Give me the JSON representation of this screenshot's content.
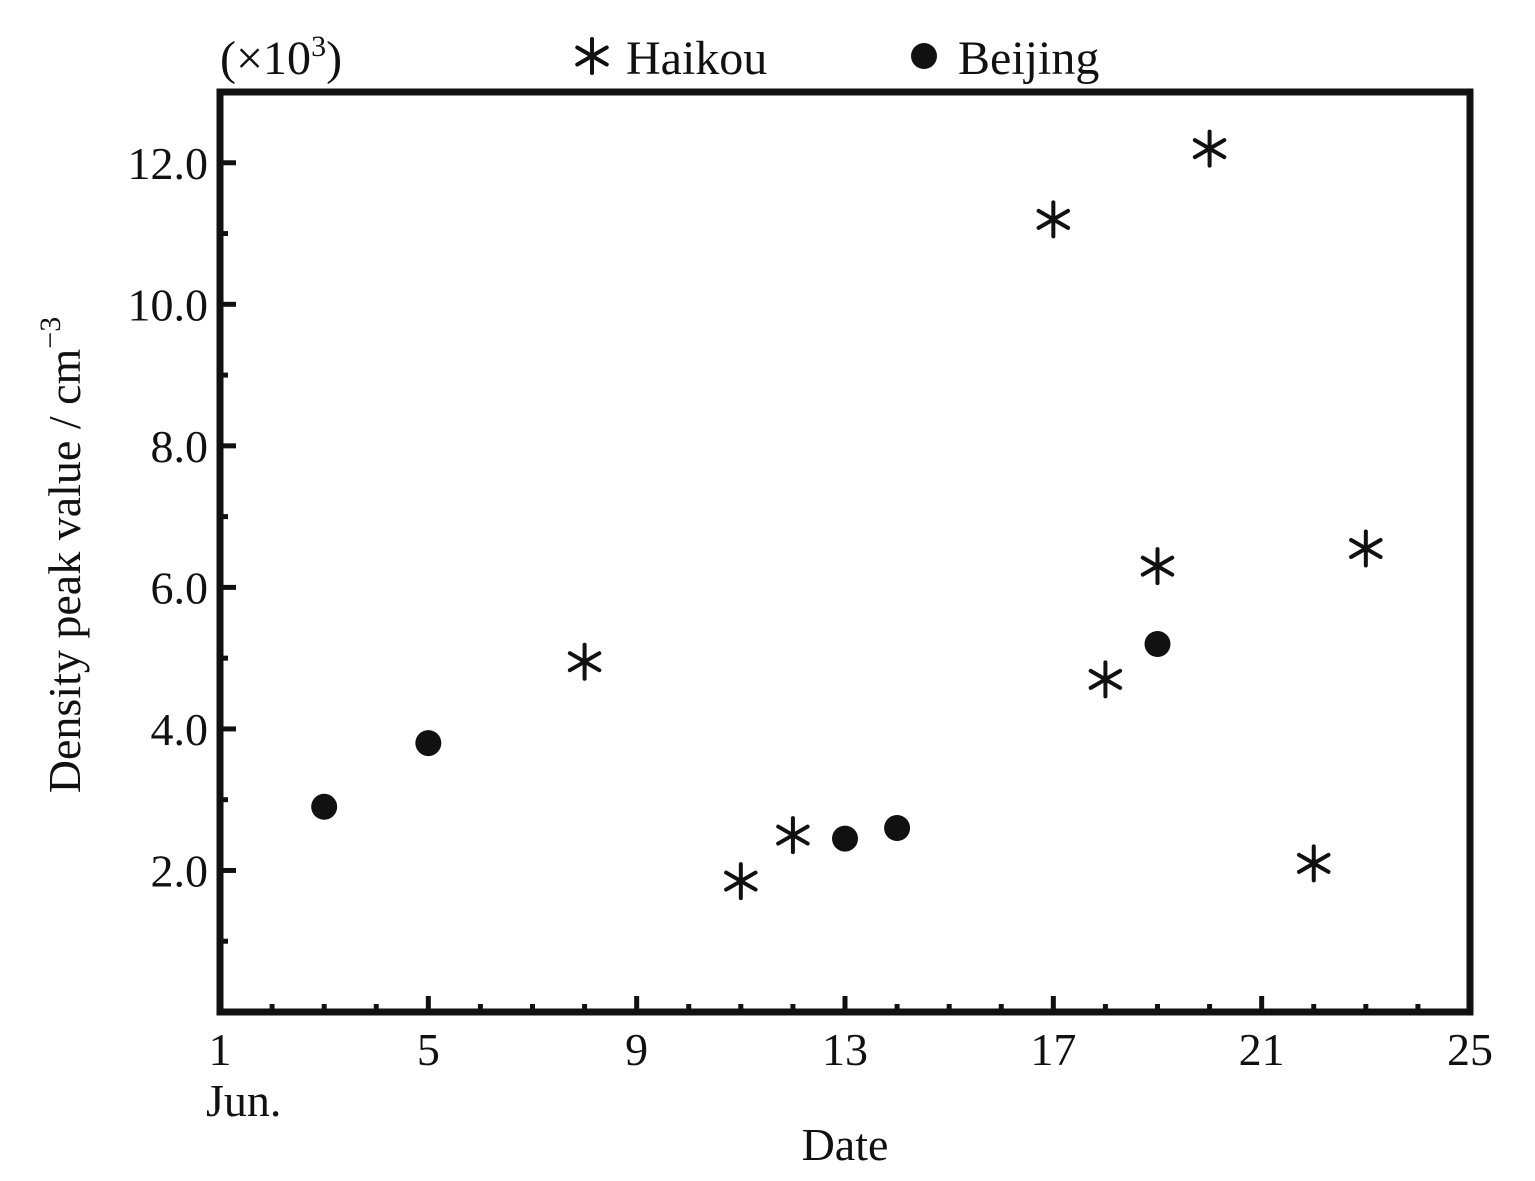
{
  "chart_data": {
    "type": "scatter",
    "xlabel": "Date",
    "ylabel": "Density peak value / cm",
    "ylabel_superscript": "−3",
    "y_multiplier": "(×10",
    "y_multiplier_exp": "3",
    "y_multiplier_close": ")",
    "xlim": [
      1,
      25
    ],
    "ylim": [
      0,
      13
    ],
    "x_major_ticks": [
      1,
      5,
      9,
      13,
      17,
      21,
      25
    ],
    "x_tick_labels": [
      "1",
      "5",
      "9",
      "13",
      "17",
      "21",
      "25"
    ],
    "x_sub_label": "Jun.",
    "y_major_ticks": [
      2,
      4,
      6,
      8,
      10,
      12
    ],
    "y_tick_labels": [
      "2.0",
      "4.0",
      "6.0",
      "8.0",
      "10.0",
      "12.0"
    ],
    "grid": false,
    "legend_position": "top",
    "series": [
      {
        "name": "Haikou",
        "marker": "asterisk",
        "color": "#111111",
        "points": [
          {
            "x": 8,
            "y": 4.95
          },
          {
            "x": 11,
            "y": 1.85
          },
          {
            "x": 12,
            "y": 2.5
          },
          {
            "x": 17,
            "y": 11.2
          },
          {
            "x": 18,
            "y": 4.7
          },
          {
            "x": 19,
            "y": 6.3
          },
          {
            "x": 20,
            "y": 12.2
          },
          {
            "x": 22,
            "y": 2.1
          },
          {
            "x": 23,
            "y": 6.55
          }
        ]
      },
      {
        "name": "Beijing",
        "marker": "circle",
        "color": "#111111",
        "points": [
          {
            "x": 3,
            "y": 2.9
          },
          {
            "x": 5,
            "y": 3.8
          },
          {
            "x": 13,
            "y": 2.45
          },
          {
            "x": 14,
            "y": 2.6
          },
          {
            "x": 19,
            "y": 5.2
          }
        ]
      }
    ]
  }
}
